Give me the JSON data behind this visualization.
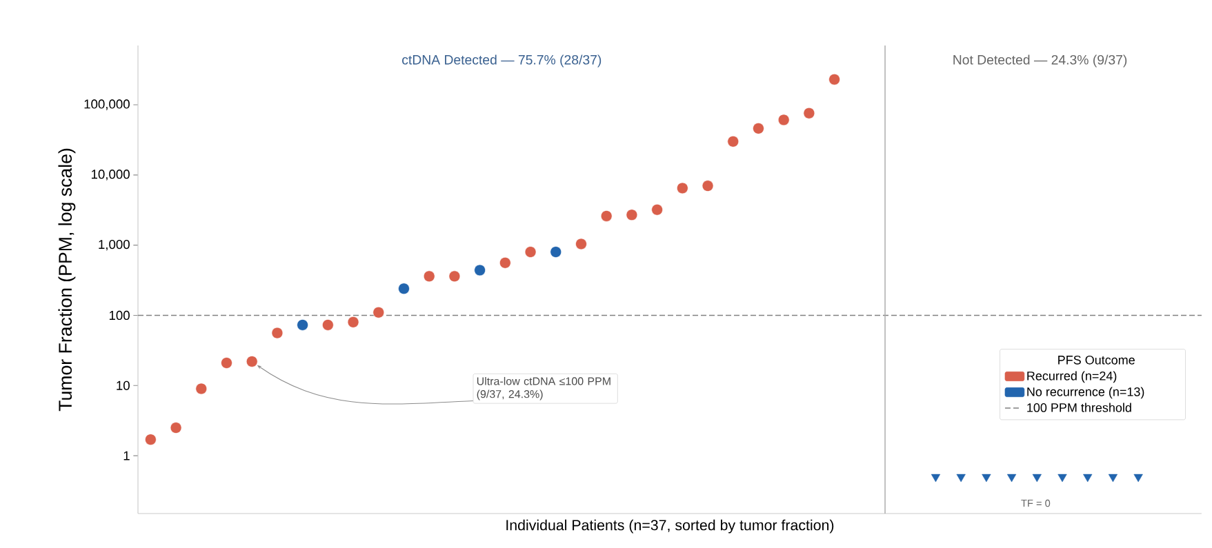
{
  "chart_data": {
    "type": "scatter",
    "xlabel": "Individual Patients  (n=37, sorted by tumor fraction)",
    "ylabel": "Tumor Fraction (PPM, log scale)",
    "legend_title": "PFS Outcome",
    "categories": [
      null,
      null,
      null,
      null,
      null,
      null,
      null,
      null,
      null,
      null,
      null,
      null,
      null,
      null,
      null,
      null,
      null,
      null,
      null,
      null,
      null,
      null,
      null,
      null,
      null,
      null,
      null,
      null,
      null,
      null,
      null,
      null,
      null,
      null,
      null,
      null,
      null,
      null,
      null,
      null,
      null,
      null
    ],
    "ylim": [
      0.15,
      700000
    ],
    "yticks": [
      {
        "value": 1,
        "label": "1"
      },
      {
        "value": 10,
        "label": "10"
      },
      {
        "value": 100,
        "label": "100"
      },
      {
        "value": 1000,
        "label": "1,000"
      },
      {
        "value": 10000,
        "label": "10,000"
      },
      {
        "value": 100000,
        "label": "100,000"
      }
    ],
    "log": "y",
    "tick_labels": "y",
    "legend": "bottom right",
    "series": [
      {
        "name": "Recurred  (n=24)",
        "color": "#d95f4b",
        "marker": "circle",
        "values": [
          1.7,
          2.5,
          9,
          21,
          22,
          56,
          null,
          73,
          80,
          110,
          null,
          360,
          360,
          null,
          560,
          800,
          null,
          1040,
          2600,
          2700,
          3200,
          6500,
          7000,
          30000,
          46000,
          61000,
          76000,
          230000,
          null,
          null,
          null,
          null,
          null,
          null,
          null,
          null,
          null,
          null,
          null,
          null,
          null,
          null
        ]
      },
      {
        "name": "No recurrence  (n=13)",
        "color": "#2265ae",
        "marker": "circle",
        "values": [
          null,
          null,
          null,
          null,
          null,
          null,
          73,
          null,
          null,
          null,
          240,
          null,
          null,
          440,
          null,
          null,
          800,
          null,
          null,
          null,
          null,
          null,
          null,
          null,
          null,
          null,
          null,
          null,
          null,
          null,
          null,
          null,
          null,
          null,
          null,
          null,
          null,
          null,
          null,
          null,
          null,
          null
        ]
      },
      {
        "color": "#2265ae",
        "marker": "triangle",
        "values": [
          null,
          null,
          null,
          null,
          null,
          null,
          null,
          null,
          null,
          null,
          null,
          null,
          null,
          null,
          null,
          null,
          null,
          null,
          null,
          null,
          null,
          null,
          null,
          null,
          null,
          null,
          null,
          null,
          null,
          null,
          null,
          0.5,
          0.5,
          0.5,
          0.5,
          0.5,
          0.5,
          0.5,
          0.5,
          0.5,
          null,
          null
        ]
      }
    ],
    "ref_lines": [
      {
        "axis": "y",
        "value": 100,
        "label": "100 PPM threshold",
        "line_style": "dashed",
        "color": "#808080"
      }
    ],
    "annotations": [
      "ctDNA Detected  —  75.7% (28/37)",
      "Not Detected  —  24.3% (9/37)",
      "Ultra-low ctDNA ≤100 PPM  (9/37, 24.3%)",
      "TF = 0"
    ]
  }
}
